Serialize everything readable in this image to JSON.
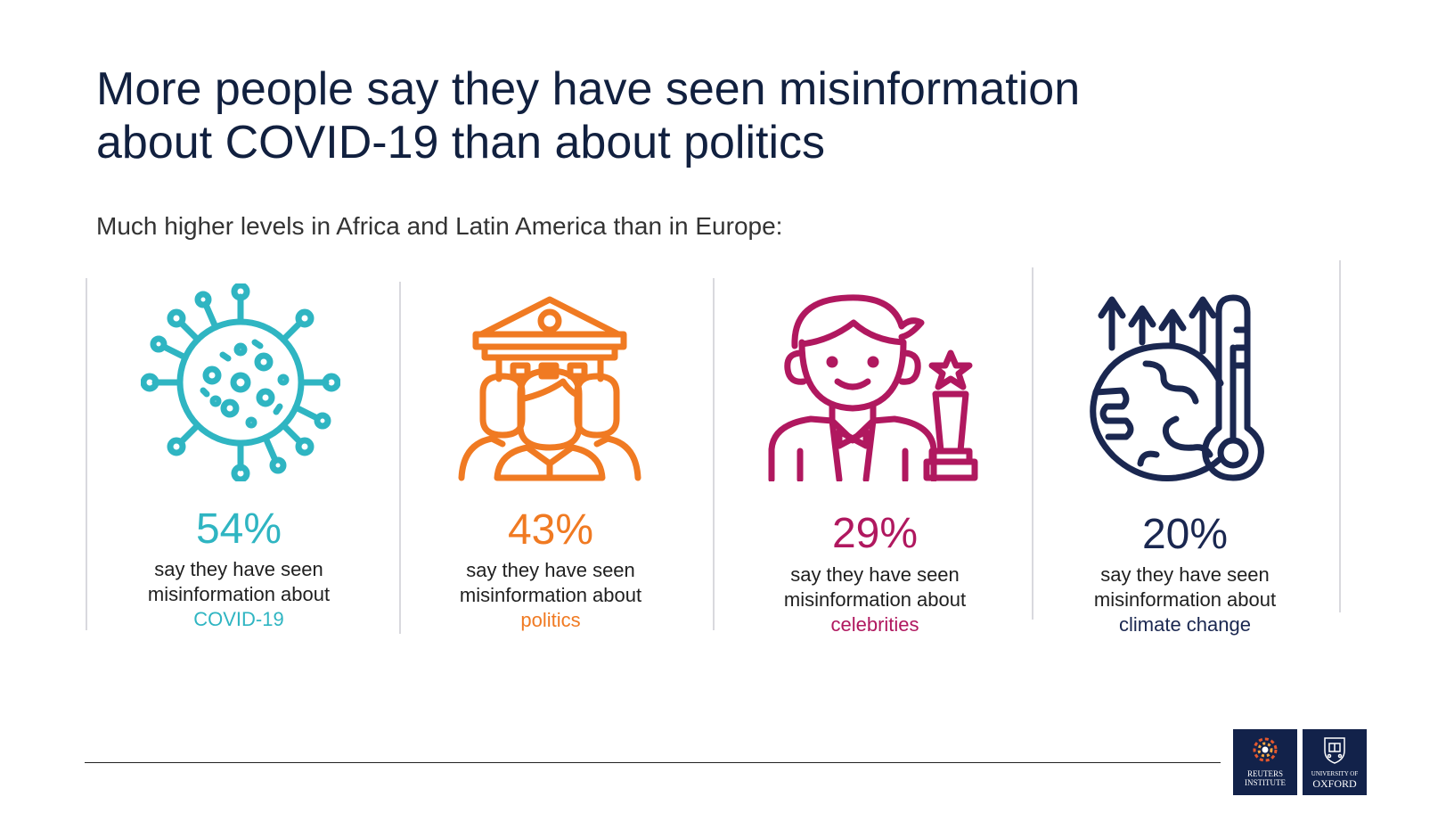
{
  "title_line1": "More people say they have seen misinformation",
  "title_line2": "about COVID-19 than about politics",
  "subtitle": "Much higher levels in Africa and Latin America than in Europe:",
  "stats": [
    {
      "percent": "54%",
      "line1": "say they have seen",
      "line2": "misinformation about",
      "topic": "COVID-19",
      "color": "#2fb5c2",
      "icon": "virus-icon"
    },
    {
      "percent": "43%",
      "line1": "say they have seen",
      "line2": "misinformation about",
      "topic": "politics",
      "color": "#f07a22",
      "icon": "government-people-icon"
    },
    {
      "percent": "29%",
      "line1": "say they have seen",
      "line2": "misinformation about",
      "topic": "celebrities",
      "color": "#b0185f",
      "icon": "celebrity-icon"
    },
    {
      "percent": "20%",
      "line1": "say they have seen",
      "line2": "misinformation about",
      "topic": "climate change",
      "color": "#1a2750",
      "icon": "climate-change-icon"
    }
  ],
  "logos": {
    "reuters_line1": "REUTERS",
    "reuters_line2": "INSTITUTE",
    "oxford_line1": "UNIVERSITY OF",
    "oxford_line2": "OXFORD"
  }
}
